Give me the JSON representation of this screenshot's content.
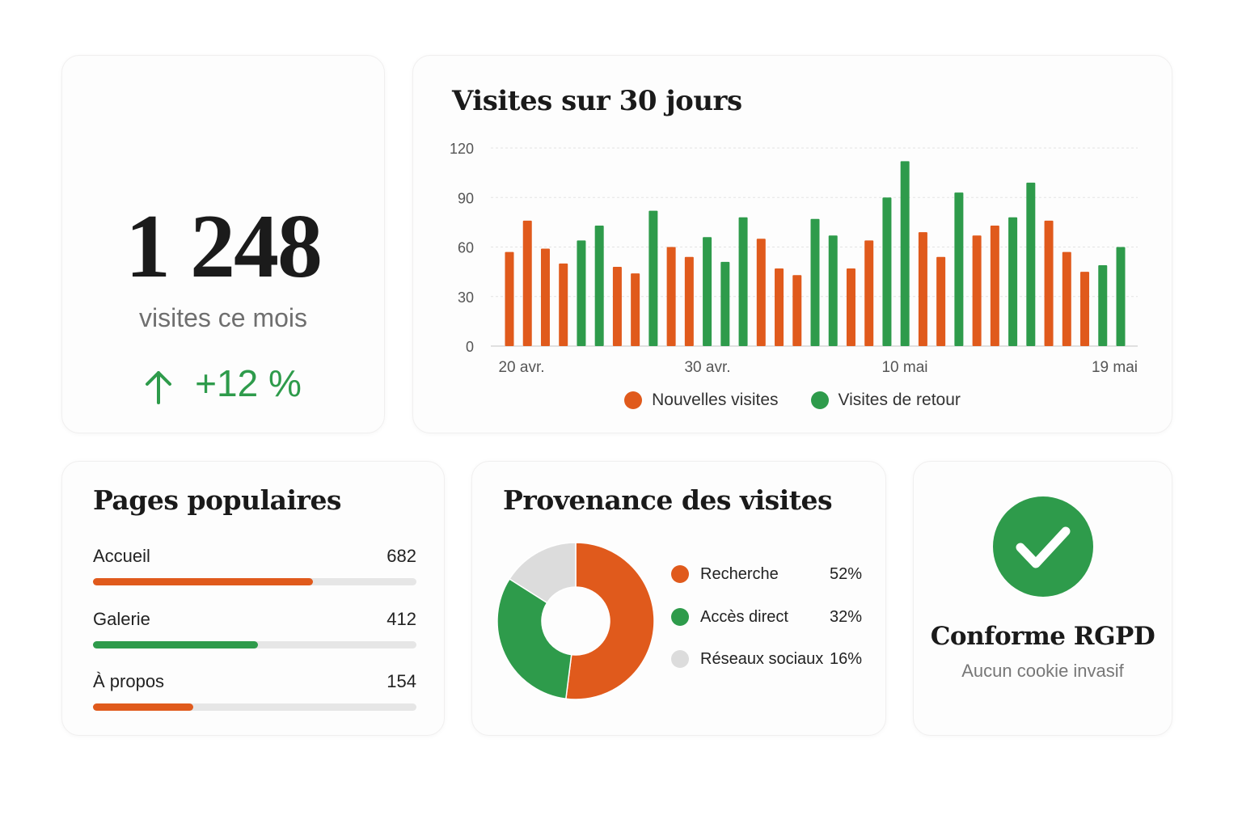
{
  "kpi": {
    "value": "1 248",
    "label": "visites ce mois",
    "trend": "+12 %",
    "trend_icon": "arrow-up-icon",
    "trend_color": "#2e9b4b"
  },
  "visits_chart": {
    "title": "Visites sur 30 jours",
    "legend": [
      {
        "label": "Nouvelles visites",
        "color": "#e05a1c"
      },
      {
        "label": "Visites de retour",
        "color": "#2e9b4b"
      }
    ]
  },
  "chart_data": {
    "type": "bar",
    "ylim": [
      0,
      120
    ],
    "yticks": [
      "0",
      "30",
      "60",
      "90",
      "120"
    ],
    "xticks": [
      "20 avr.",
      "30 avr.",
      "10 mai",
      "19 mai"
    ],
    "grid": true,
    "legend_position": "bottom",
    "series_names": [
      "Nouvelles visites",
      "Visites de retour"
    ],
    "bars": [
      {
        "series": "Nouvelles visites",
        "value": 57
      },
      {
        "series": "Nouvelles visites",
        "value": 76
      },
      {
        "series": "Nouvelles visites",
        "value": 59
      },
      {
        "series": "Nouvelles visites",
        "value": 50
      },
      {
        "series": "Visites de retour",
        "value": 64
      },
      {
        "series": "Visites de retour",
        "value": 73
      },
      {
        "series": "Nouvelles visites",
        "value": 48
      },
      {
        "series": "Nouvelles visites",
        "value": 44
      },
      {
        "series": "Visites de retour",
        "value": 82
      },
      {
        "series": "Nouvelles visites",
        "value": 60
      },
      {
        "series": "Nouvelles visites",
        "value": 54
      },
      {
        "series": "Visites de retour",
        "value": 66
      },
      {
        "series": "Visites de retour",
        "value": 51
      },
      {
        "series": "Visites de retour",
        "value": 78
      },
      {
        "series": "Nouvelles visites",
        "value": 65
      },
      {
        "series": "Nouvelles visites",
        "value": 47
      },
      {
        "series": "Nouvelles visites",
        "value": 43
      },
      {
        "series": "Visites de retour",
        "value": 77
      },
      {
        "series": "Visites de retour",
        "value": 67
      },
      {
        "series": "Nouvelles visites",
        "value": 47
      },
      {
        "series": "Nouvelles visites",
        "value": 64
      },
      {
        "series": "Visites de retour",
        "value": 90
      },
      {
        "series": "Visites de retour",
        "value": 112
      },
      {
        "series": "Nouvelles visites",
        "value": 69
      },
      {
        "series": "Nouvelles visites",
        "value": 54
      },
      {
        "series": "Visites de retour",
        "value": 93
      },
      {
        "series": "Nouvelles visites",
        "value": 67
      },
      {
        "series": "Nouvelles visites",
        "value": 73
      },
      {
        "series": "Visites de retour",
        "value": 78
      },
      {
        "series": "Visites de retour",
        "value": 99
      },
      {
        "series": "Nouvelles visites",
        "value": 76
      },
      {
        "series": "Nouvelles visites",
        "value": 57
      },
      {
        "series": "Nouvelles visites",
        "value": 45
      },
      {
        "series": "Visites de retour",
        "value": 49
      },
      {
        "series": "Visites de retour",
        "value": 60
      }
    ]
  },
  "popular_pages": {
    "title": "Pages populaires",
    "items": [
      {
        "label": "Accueil",
        "value": "682",
        "share": 0.68,
        "color": "#e05a1c"
      },
      {
        "label": "Galerie",
        "value": "412",
        "share": 0.51,
        "color": "#2e9b4b"
      },
      {
        "label": "À propos",
        "value": "154",
        "share": 0.31,
        "color": "#e05a1c"
      }
    ]
  },
  "sources": {
    "title": "Provenance des visites",
    "items": [
      {
        "label": "Recherche",
        "value": "52%",
        "percent": 52,
        "color": "#e05a1c"
      },
      {
        "label": "Accès direct",
        "value": "32%",
        "percent": 32,
        "color": "#2e9b4b"
      },
      {
        "label": "Réseaux sociaux",
        "value": "16%",
        "percent": 16,
        "color": "#dcdcdc"
      }
    ]
  },
  "compliance": {
    "title": "Conforme RGPD",
    "subtitle": "Aucun cookie invasif",
    "icon": "check-circle-icon",
    "color": "#2e9b4b"
  }
}
